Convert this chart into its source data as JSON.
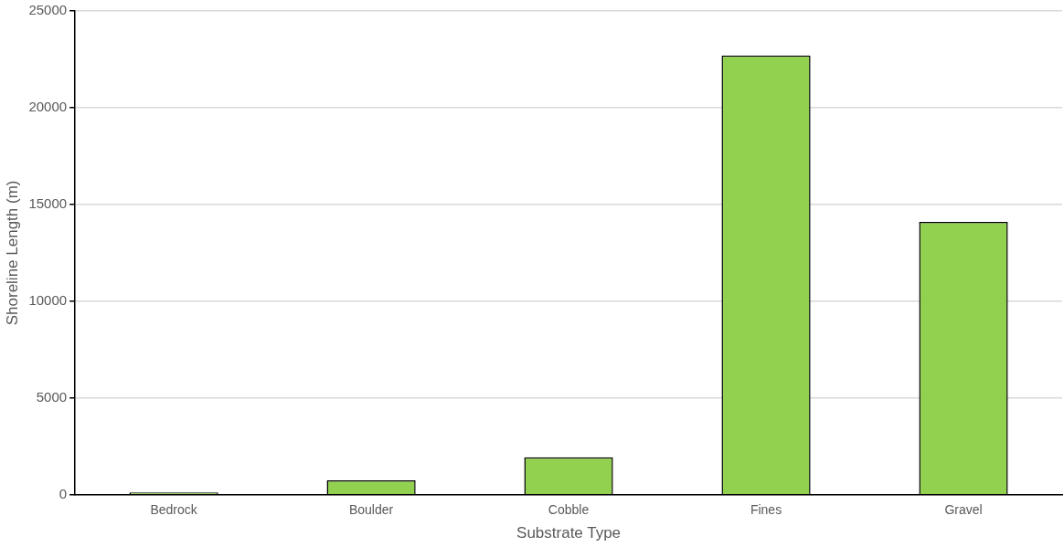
{
  "chart_data": {
    "type": "bar",
    "xlabel": "Substrate Type",
    "ylabel": "Shoreline Length (m)",
    "categories": [
      "Bedrock",
      "Boulder",
      "Cobble",
      "Fines",
      "Gravel"
    ],
    "values": [
      120,
      740,
      1940,
      22700,
      14100
    ],
    "color": "#92d050",
    "ylim": [
      0,
      25000
    ],
    "yticks": [
      0,
      5000,
      10000,
      15000,
      20000,
      25000
    ],
    "grid": "y",
    "legend": false
  }
}
